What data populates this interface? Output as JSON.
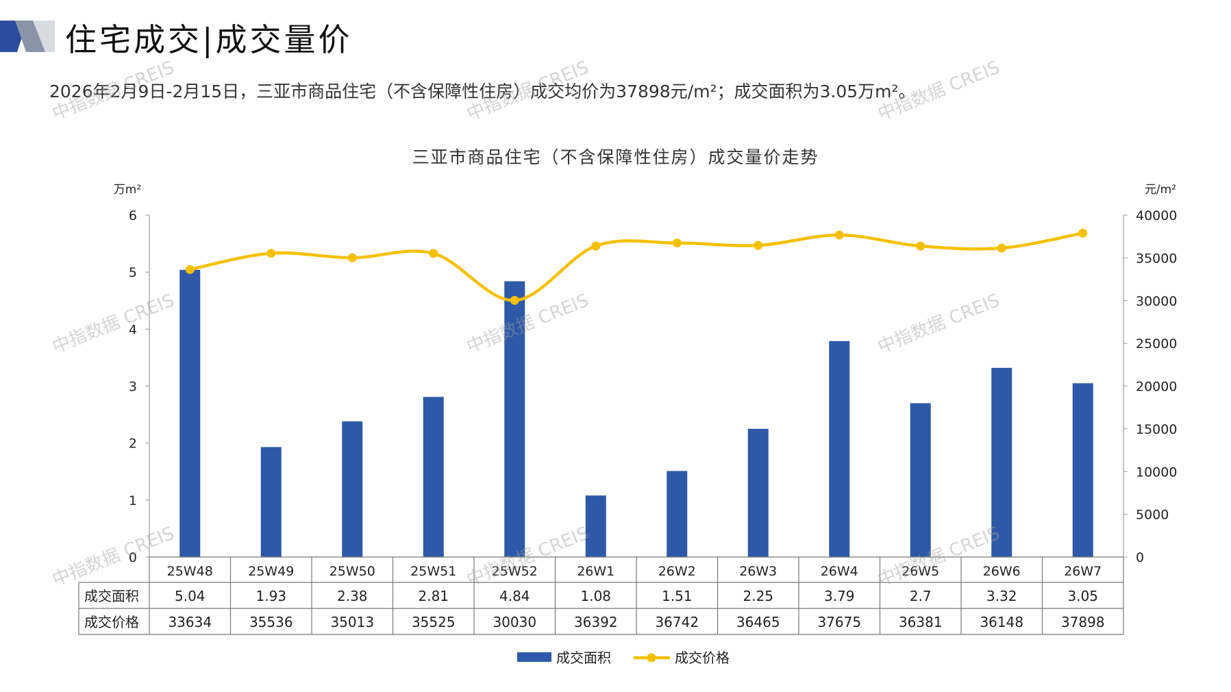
{
  "header": {
    "title": "住宅成交|成交量价",
    "summary": "2026年2月9日-2月15日，三亚市商品住宅（不含保障性住房）成交均价为37898元/m²；成交面积为3.05万m²。"
  },
  "watermark_text": "中指数据 CREIS",
  "chart_data": {
    "type": "bar",
    "title": "三亚市商品住宅（不含保障性住房）成交量价走势",
    "categories": [
      "25W48",
      "25W49",
      "25W50",
      "25W51",
      "25W52",
      "26W1",
      "26W2",
      "26W3",
      "26W4",
      "26W5",
      "26W6",
      "26W7"
    ],
    "y_left": {
      "unit": "万m²",
      "range": [
        0,
        6
      ],
      "ticks": [
        0,
        1,
        2,
        3,
        4,
        5,
        6
      ]
    },
    "y_right": {
      "unit": "元/m²",
      "range": [
        0,
        40000
      ],
      "ticks": [
        0,
        5000,
        10000,
        15000,
        20000,
        25000,
        30000,
        35000,
        40000
      ]
    },
    "series": [
      {
        "name": "成交面积",
        "type": "bar",
        "axis": "left",
        "color": "#2E59A8",
        "values": [
          5.04,
          1.93,
          2.38,
          2.81,
          4.84,
          1.08,
          1.51,
          2.25,
          3.79,
          2.7,
          3.32,
          3.05
        ],
        "display": [
          "5.04",
          "1.93",
          "2.38",
          "2.81",
          "4.84",
          "1.08",
          "1.51",
          "2.25",
          "3.79",
          "2.7",
          "3.32",
          "3.05"
        ]
      },
      {
        "name": "成交价格",
        "type": "line",
        "axis": "right",
        "color": "#F5C000",
        "smooth": true,
        "values": [
          33634,
          35536,
          35013,
          35525,
          30030,
          36392,
          36742,
          36465,
          37675,
          36381,
          36148,
          37898
        ],
        "display": [
          "33634",
          "35536",
          "35013",
          "35525",
          "30030",
          "36392",
          "36742",
          "36465",
          "37675",
          "36381",
          "36148",
          "37898"
        ]
      }
    ],
    "table": true,
    "legend": "bottom-center",
    "grid": false
  }
}
